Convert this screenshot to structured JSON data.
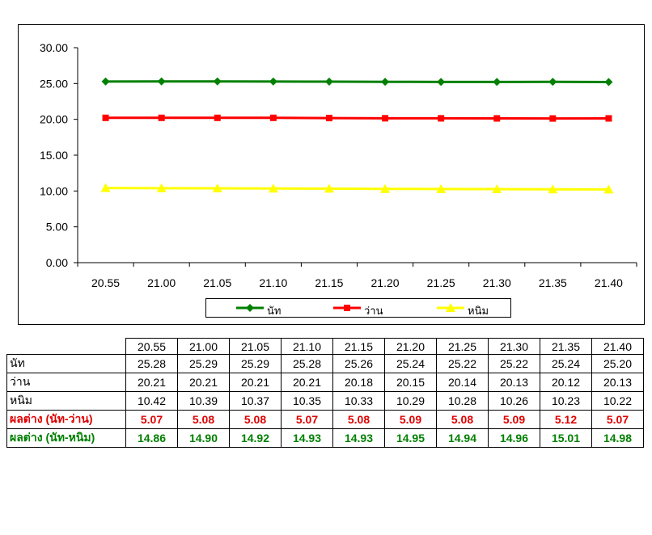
{
  "chart_data": {
    "type": "line",
    "categories": [
      "20.55",
      "21.00",
      "21.05",
      "21.10",
      "21.15",
      "21.20",
      "21.25",
      "21.30",
      "21.35",
      "21.40"
    ],
    "ylim": [
      0,
      30
    ],
    "yticks": [
      "0.00",
      "5.00",
      "10.00",
      "15.00",
      "20.00",
      "25.00",
      "30.00"
    ],
    "series": [
      {
        "name": "นัท",
        "color": "#008000",
        "marker": "diamond",
        "values": [
          25.28,
          25.29,
          25.29,
          25.28,
          25.26,
          25.24,
          25.22,
          25.22,
          25.24,
          25.2
        ]
      },
      {
        "name": "ว่าน",
        "color": "#ff0000",
        "marker": "square",
        "values": [
          20.21,
          20.21,
          20.21,
          20.21,
          20.18,
          20.15,
          20.14,
          20.13,
          20.12,
          20.13
        ]
      },
      {
        "name": "หนิม",
        "color": "#ffff00",
        "marker": "triangle",
        "values": [
          10.42,
          10.39,
          10.37,
          10.35,
          10.33,
          10.29,
          10.28,
          10.26,
          10.23,
          10.22
        ]
      }
    ],
    "legend_position": "bottom",
    "grid": false
  },
  "table": {
    "header": [
      "20.55",
      "21.00",
      "21.05",
      "21.10",
      "21.15",
      "21.20",
      "21.25",
      "21.30",
      "21.35",
      "21.40"
    ],
    "rows": [
      {
        "label": "นัท",
        "values": [
          "25.28",
          "25.29",
          "25.29",
          "25.28",
          "25.26",
          "25.24",
          "25.22",
          "25.22",
          "25.24",
          "25.20"
        ]
      },
      {
        "label": "ว่าน",
        "values": [
          "20.21",
          "20.21",
          "20.21",
          "20.21",
          "20.18",
          "20.15",
          "20.14",
          "20.13",
          "20.12",
          "20.13"
        ]
      },
      {
        "label": "หนิม",
        "values": [
          "10.42",
          "10.39",
          "10.37",
          "10.35",
          "10.33",
          "10.29",
          "10.28",
          "10.26",
          "10.23",
          "10.22"
        ]
      }
    ],
    "diff_rows": [
      {
        "label": "ผลต่าง (นัท-ว่าน)",
        "color": "#e00000",
        "values": [
          "5.07",
          "5.08",
          "5.08",
          "5.07",
          "5.08",
          "5.09",
          "5.08",
          "5.09",
          "5.12",
          "5.07"
        ]
      },
      {
        "label": "ผลต่าง (นัท-หนิม)",
        "color": "#008000",
        "values": [
          "14.86",
          "14.90",
          "14.92",
          "14.93",
          "14.93",
          "14.95",
          "14.94",
          "14.96",
          "15.01",
          "14.98"
        ]
      }
    ]
  }
}
